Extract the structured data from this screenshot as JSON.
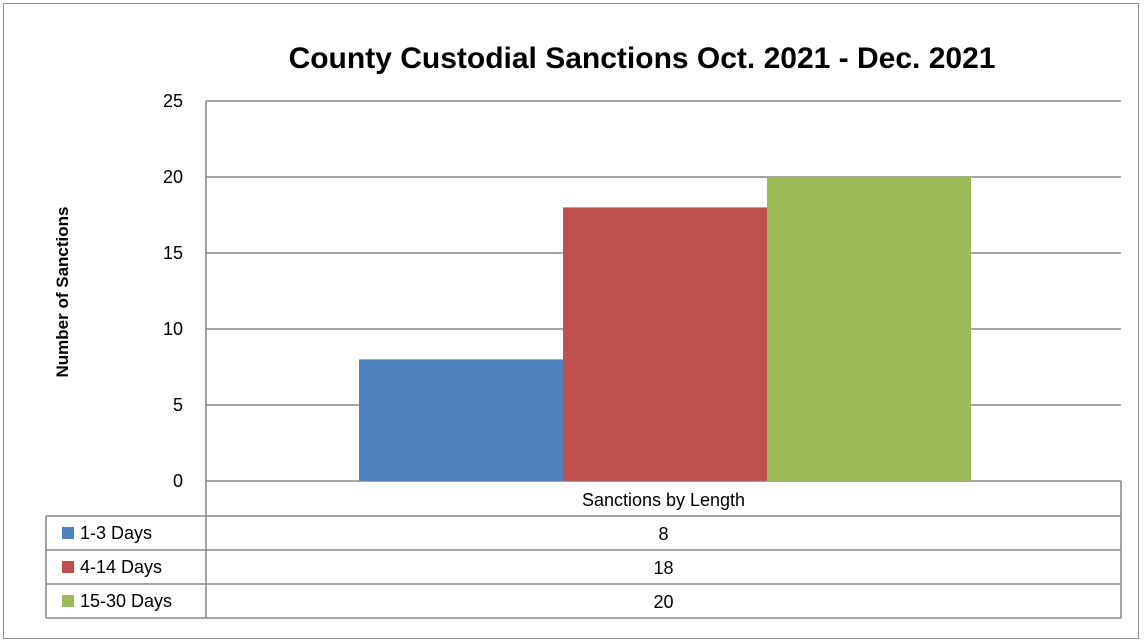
{
  "chart_data": {
    "type": "bar",
    "title": "County Custodial Sanctions Oct. 2021 - Dec. 2021",
    "xlabel": "",
    "ylabel": "Number of Sanctions",
    "categories": [
      "Sanctions by Length"
    ],
    "series": [
      {
        "name": "1-3 Days",
        "values": [
          8
        ],
        "color": "#4f81bd"
      },
      {
        "name": "4-14 Days",
        "values": [
          18
        ],
        "color": "#c0504d"
      },
      {
        "name": "15-30 Days",
        "values": [
          20
        ],
        "color": "#9bbb59"
      }
    ],
    "ylim": [
      0,
      25
    ],
    "yticks": [
      0,
      5,
      10,
      15,
      20,
      25
    ],
    "grid": true,
    "legend": "data table"
  }
}
